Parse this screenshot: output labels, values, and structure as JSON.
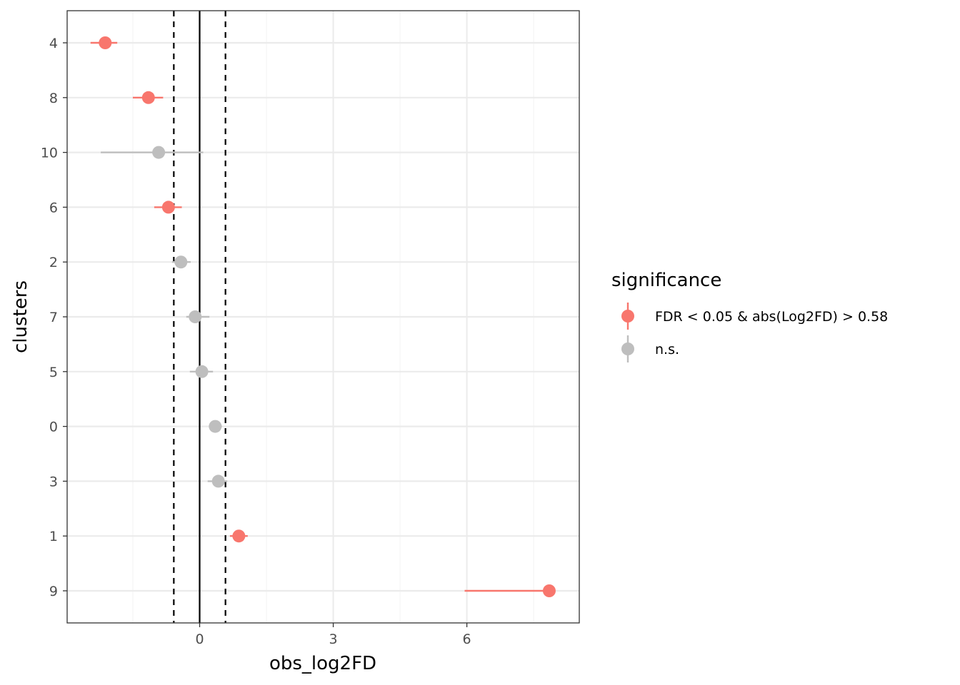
{
  "chart_data": {
    "type": "scatter",
    "xlabel": "obs_log2FD",
    "ylabel": "clusters",
    "xlim": [
      -1.5,
      4.25
    ],
    "x_ticks": [
      0,
      3,
      6
    ],
    "x_ticks_labels": [
      "0",
      "3",
      "6"
    ],
    "grid": true,
    "reference_lines": {
      "solid": 0,
      "dashed": [
        -0.58,
        0.58
      ]
    },
    "categories": [
      "4",
      "8",
      "10",
      "6",
      "2",
      "7",
      "5",
      "0",
      "3",
      "1",
      "9"
    ],
    "points": [
      {
        "cluster": "4",
        "x": -2.12,
        "lo": -2.45,
        "hi": -1.85,
        "significance": "FDR < 0.05 & abs(Log2FD) > 0.58"
      },
      {
        "cluster": "8",
        "x": -1.15,
        "lo": -1.5,
        "hi": -0.82,
        "significance": "FDR < 0.05 & abs(Log2FD) > 0.58"
      },
      {
        "cluster": "10",
        "x": -0.92,
        "lo": -2.22,
        "hi": 0.08,
        "significance": "n.s."
      },
      {
        "cluster": "6",
        "x": -0.7,
        "lo": -1.02,
        "hi": -0.4,
        "significance": "FDR < 0.05 & abs(Log2FD) > 0.58"
      },
      {
        "cluster": "2",
        "x": -0.42,
        "lo": -0.62,
        "hi": -0.2,
        "significance": "n.s."
      },
      {
        "cluster": "7",
        "x": -0.1,
        "lo": -0.3,
        "hi": 0.22,
        "significance": "n.s."
      },
      {
        "cluster": "5",
        "x": 0.05,
        "lo": -0.22,
        "hi": 0.3,
        "significance": "n.s."
      },
      {
        "cluster": "0",
        "x": 0.35,
        "lo": 0.22,
        "hi": 0.5,
        "significance": "n.s."
      },
      {
        "cluster": "3",
        "x": 0.42,
        "lo": 0.18,
        "hi": 0.62,
        "significance": "n.s."
      },
      {
        "cluster": "1",
        "x": 0.88,
        "lo": 0.68,
        "hi": 1.08,
        "significance": "FDR < 0.05 & abs(Log2FD) > 0.58"
      },
      {
        "cluster": "9",
        "x": 7.85,
        "lo": 5.95,
        "hi": 7.95,
        "significance": "FDR < 0.05 & abs(Log2FD) > 0.58"
      }
    ],
    "legend": {
      "title": "significance",
      "position": "right",
      "entries": [
        {
          "label": "FDR < 0.05 & abs(Log2FD) > 0.58",
          "color": "#f8766d"
        },
        {
          "label": "n.s.",
          "color": "#bebebe"
        }
      ]
    }
  }
}
